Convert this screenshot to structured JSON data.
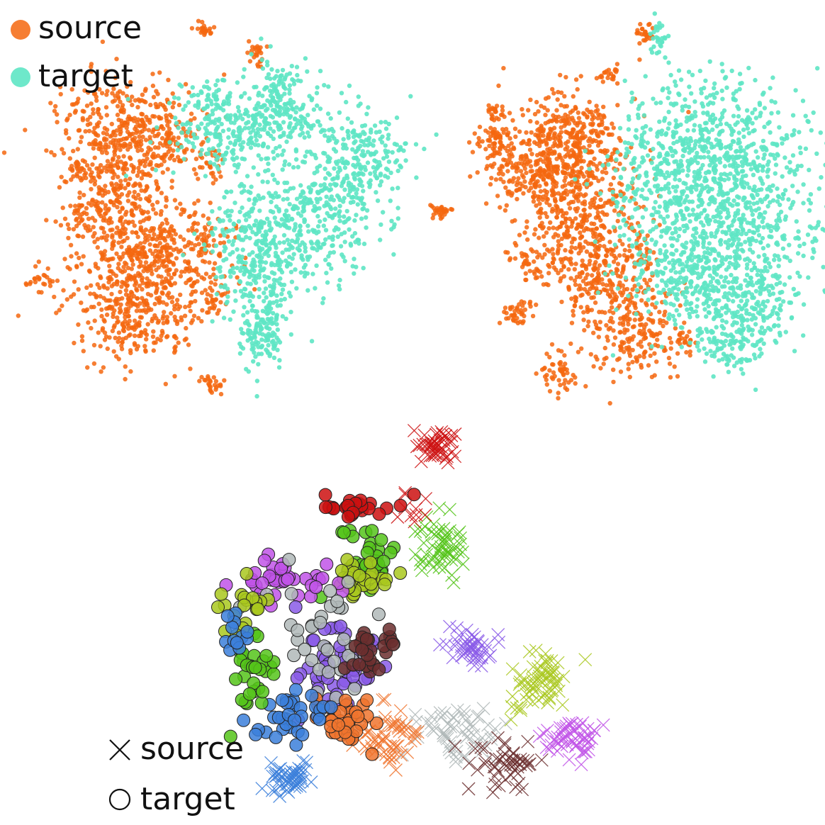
{
  "chart_data": [
    {
      "type": "scatter",
      "title": "",
      "xlabel": "",
      "ylabel": "",
      "grid": false,
      "legend": "top-left",
      "series": [
        {
          "name": "source",
          "color": "#f4670f",
          "marker": "circle"
        },
        {
          "name": "target",
          "color": "#5ee6c4",
          "marker": "circle"
        }
      ]
    },
    {
      "type": "scatter",
      "title": "",
      "xlabel": "",
      "ylabel": "",
      "grid": false,
      "legend": "none",
      "series": [
        {
          "name": "source",
          "color": "#f4670f",
          "marker": "circle"
        },
        {
          "name": "target",
          "color": "#5ee6c4",
          "marker": "circle"
        }
      ]
    },
    {
      "type": "scatter",
      "title": "",
      "xlabel": "",
      "ylabel": "",
      "grid": false,
      "legend": "bottom-left",
      "legend_entries": [
        {
          "name": "source",
          "marker": "cross"
        },
        {
          "name": "target",
          "marker": "circle"
        }
      ],
      "class_colors": [
        "#cc1111",
        "#55c41a",
        "#a9c81e",
        "#c154e8",
        "#8a5ae8",
        "#b0b8b8",
        "#6b2e2e",
        "#f0742e",
        "#3b7fdb"
      ]
    }
  ]
}
